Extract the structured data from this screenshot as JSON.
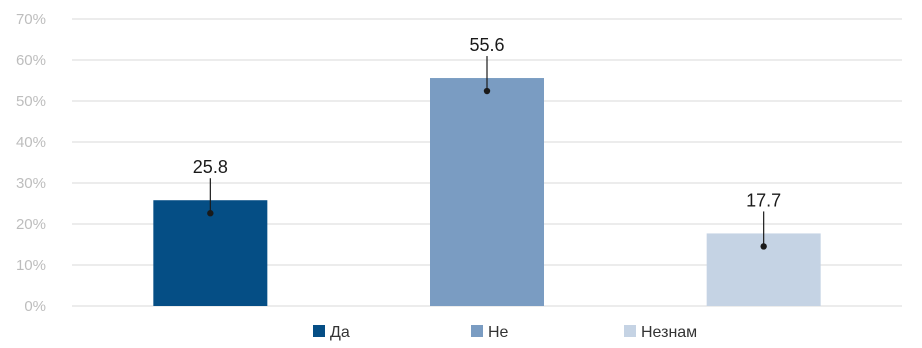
{
  "chart_data": {
    "type": "bar",
    "categories": [
      "Да",
      "Не",
      "Незнам"
    ],
    "values": [
      25.8,
      55.6,
      17.7
    ],
    "data_labels": [
      "25.8",
      "55.6",
      "17.7"
    ],
    "ylim": [
      0,
      70
    ],
    "yticks": [
      0,
      10,
      20,
      30,
      40,
      50,
      60,
      70
    ],
    "ytick_labels": [
      "0%",
      "10%",
      "20%",
      "30%",
      "40%",
      "50%",
      "60%",
      "70%"
    ],
    "grid": true,
    "legend": "bottom",
    "colors": [
      "#054e85",
      "#7a9cc2",
      "#c5d3e4"
    ]
  }
}
